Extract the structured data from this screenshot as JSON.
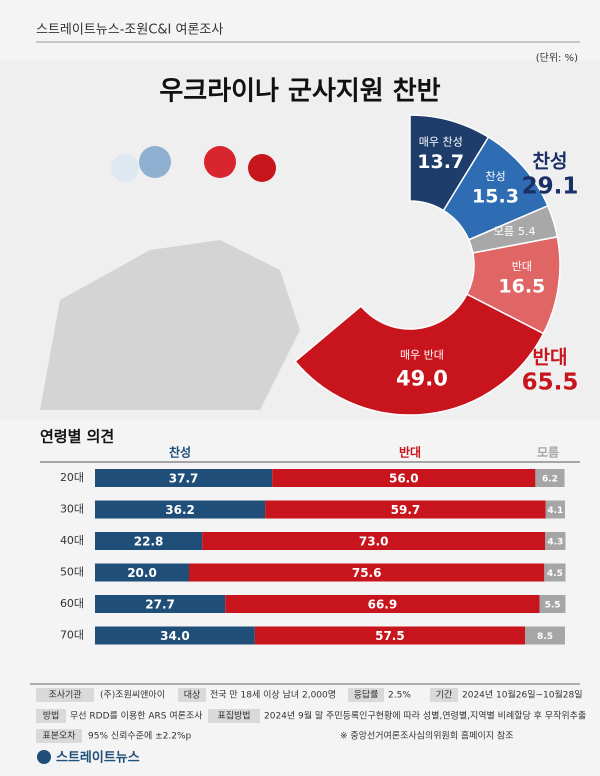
{
  "header": "스트레이트뉴스-조원C&I 여론조사",
  "unit": "(단위: %)",
  "chart_data": [
    {
      "type": "pie",
      "title": "우크라이나 군사지원 찬반",
      "categories": [
        "매우 찬성",
        "찬성",
        "모름",
        "반대",
        "매우 반대"
      ],
      "values": [
        13.7,
        15.3,
        5.4,
        16.5,
        49.0
      ],
      "value_labels": [
        "13.7",
        "15.3",
        "5.4",
        "16.5",
        "49.0"
      ],
      "colors": [
        "#1f3d6b",
        "#2e6db3",
        "#a8a8a8",
        "#e06666",
        "#c8141c"
      ],
      "annotations": [
        {
          "label": "찬성",
          "value": 29.1,
          "color": "#1a2f66"
        },
        {
          "label": "반대",
          "value": 65.5,
          "color": "#c8141c"
        }
      ]
    },
    {
      "type": "bar",
      "title": "연령별 의견",
      "stacked": true,
      "orientation": "horizontal",
      "categories": [
        "20대",
        "30대",
        "40대",
        "50대",
        "60대",
        "70대"
      ],
      "xlim": [
        0,
        100
      ],
      "series": [
        {
          "name": "찬성",
          "color": "#1f4e79",
          "values": [
            37.7,
            36.2,
            22.8,
            20.0,
            27.7,
            34.0
          ],
          "value_labels": [
            "37.7",
            "36.2",
            "22.8",
            "20.0",
            "27.7",
            "34.0"
          ]
        },
        {
          "name": "반대",
          "color": "#c8141c",
          "values": [
            56.0,
            59.7,
            73.0,
            75.6,
            66.9,
            57.5
          ],
          "value_labels": [
            "56.0",
            "59.7",
            "73.0",
            "75.6",
            "66.9",
            "57.5"
          ]
        },
        {
          "name": "모름",
          "color": "#a6a6a6",
          "values": [
            6.2,
            4.1,
            4.3,
            4.5,
            5.5,
            8.5
          ]
        }
      ]
    }
  ],
  "footer": {
    "items": [
      {
        "label": "조사기관",
        "value": "(주)조원씨앤아이"
      },
      {
        "label": "대상",
        "value": "전국 만 18세 이상 남녀 2,000명"
      },
      {
        "label": "응답률",
        "value": "2.5%"
      },
      {
        "label": "기간",
        "value": "2024년 10월26일~10월28일"
      },
      {
        "label": "방법",
        "value": "무선 RDD를 이용한 ARS 여론조사"
      },
      {
        "label": "표집방법",
        "value": "2024년 9월 말 주민등록인구현황에 따라 성별,연령별,지역별 비례할당 후 무작위추출"
      },
      {
        "label": "표본오차",
        "value": "95% 신뢰수준에 ±2.2%p"
      }
    ],
    "note": "※ 중앙선거여론조사심의위원회 홈페이지 참조",
    "logo": "스트레이트뉴스"
  }
}
